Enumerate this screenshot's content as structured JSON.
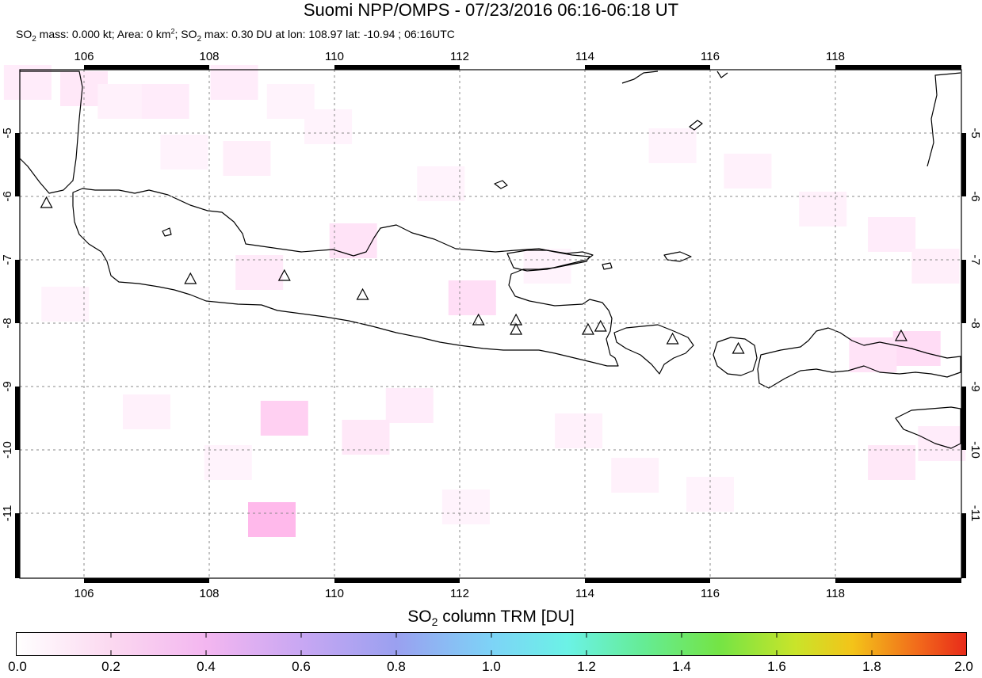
{
  "header": {
    "title": "Suomi NPP/OMPS - 07/23/2016 06:16-06:18 UT",
    "subtitle": {
      "prefix": "SO",
      "sub1": "2",
      "part2": " mass: 0.000 kt; Area: 0 km",
      "sup": "2",
      "part3": "; SO",
      "sub2": "2",
      "part4": " max: 0.30 DU at lon: 108.97 lat: -10.94 ; 06:16UTC"
    }
  },
  "map": {
    "lon_labels": [
      "106",
      "108",
      "110",
      "112",
      "114",
      "116",
      "118"
    ],
    "lat_labels": [
      "-5",
      "-6",
      "-7",
      "-8",
      "-9",
      "-10",
      "-11"
    ],
    "lon_values": [
      106,
      108,
      110,
      112,
      114,
      116,
      118
    ],
    "lat_values": [
      -5,
      -6,
      -7,
      -8,
      -9,
      -10,
      -11
    ],
    "lon_range": [
      105,
      120.2
    ],
    "lat_range": [
      -12.1,
      -3.9
    ],
    "grid": true,
    "volcanoes": [
      {
        "lon": 105.4,
        "lat": -6.1
      },
      {
        "lon": 107.7,
        "lat": -7.3
      },
      {
        "lon": 109.2,
        "lat": -7.25
      },
      {
        "lon": 110.45,
        "lat": -7.55
      },
      {
        "lon": 112.3,
        "lat": -7.95
      },
      {
        "lon": 112.9,
        "lat": -7.95
      },
      {
        "lon": 112.9,
        "lat": -8.1
      },
      {
        "lon": 114.05,
        "lat": -8.1
      },
      {
        "lon": 114.25,
        "lat": -8.05
      },
      {
        "lon": 115.4,
        "lat": -8.25
      },
      {
        "lon": 116.45,
        "lat": -8.4
      },
      {
        "lon": 119.05,
        "lat": -8.2
      }
    ],
    "so2_cells": [
      {
        "lon": 105.1,
        "lat": -4.2,
        "du": 0.08
      },
      {
        "lon": 106.0,
        "lat": -4.3,
        "du": 0.1
      },
      {
        "lon": 106.6,
        "lat": -4.5,
        "du": 0.06
      },
      {
        "lon": 107.3,
        "lat": -4.5,
        "du": 0.08
      },
      {
        "lon": 108.4,
        "lat": -4.2,
        "du": 0.08
      },
      {
        "lon": 109.3,
        "lat": -4.5,
        "du": 0.05
      },
      {
        "lon": 107.6,
        "lat": -5.3,
        "du": 0.05
      },
      {
        "lon": 108.6,
        "lat": -5.4,
        "du": 0.07
      },
      {
        "lon": 109.9,
        "lat": -4.9,
        "du": 0.05
      },
      {
        "lon": 110.3,
        "lat": -6.7,
        "du": 0.12
      },
      {
        "lon": 108.8,
        "lat": -7.2,
        "du": 0.09
      },
      {
        "lon": 112.2,
        "lat": -7.6,
        "du": 0.14
      },
      {
        "lon": 111.2,
        "lat": -9.3,
        "du": 0.08
      },
      {
        "lon": 109.2,
        "lat": -9.5,
        "du": 0.2
      },
      {
        "lon": 107.0,
        "lat": -9.4,
        "du": 0.06
      },
      {
        "lon": 109.0,
        "lat": -11.1,
        "du": 0.3
      },
      {
        "lon": 108.3,
        "lat": -10.2,
        "du": 0.05
      },
      {
        "lon": 113.9,
        "lat": -9.7,
        "du": 0.06
      },
      {
        "lon": 114.8,
        "lat": -10.4,
        "du": 0.06
      },
      {
        "lon": 112.1,
        "lat": -10.9,
        "du": 0.05
      },
      {
        "lon": 115.4,
        "lat": -5.2,
        "du": 0.05
      },
      {
        "lon": 116.6,
        "lat": -5.6,
        "du": 0.06
      },
      {
        "lon": 117.8,
        "lat": -6.2,
        "du": 0.06
      },
      {
        "lon": 118.9,
        "lat": -6.6,
        "du": 0.08
      },
      {
        "lon": 119.6,
        "lat": -7.1,
        "du": 0.07
      },
      {
        "lon": 119.3,
        "lat": -8.4,
        "du": 0.15
      },
      {
        "lon": 118.6,
        "lat": -8.5,
        "du": 0.12
      },
      {
        "lon": 119.7,
        "lat": -9.9,
        "du": 0.08
      },
      {
        "lon": 118.9,
        "lat": -10.2,
        "du": 0.1
      },
      {
        "lon": 113.4,
        "lat": -7.1,
        "du": 0.05
      },
      {
        "lon": 105.7,
        "lat": -7.7,
        "du": 0.05
      },
      {
        "lon": 116.0,
        "lat": -10.7,
        "du": 0.05
      },
      {
        "lon": 110.5,
        "lat": -9.8,
        "du": 0.1
      },
      {
        "lon": 111.7,
        "lat": -5.8,
        "du": 0.05
      }
    ]
  },
  "colorbar": {
    "title_prefix": "SO",
    "title_sub": "2",
    "title_suffix": " column TRM [DU]",
    "labels": [
      "0.0",
      "0.2",
      "0.4",
      "0.6",
      "0.8",
      "1.0",
      "1.2",
      "1.4",
      "1.6",
      "1.8",
      "2.0"
    ],
    "values": [
      0.0,
      0.2,
      0.4,
      0.6,
      0.8,
      1.0,
      1.2,
      1.4,
      1.6,
      1.8,
      2.0
    ],
    "range": [
      0,
      2.0
    ]
  }
}
